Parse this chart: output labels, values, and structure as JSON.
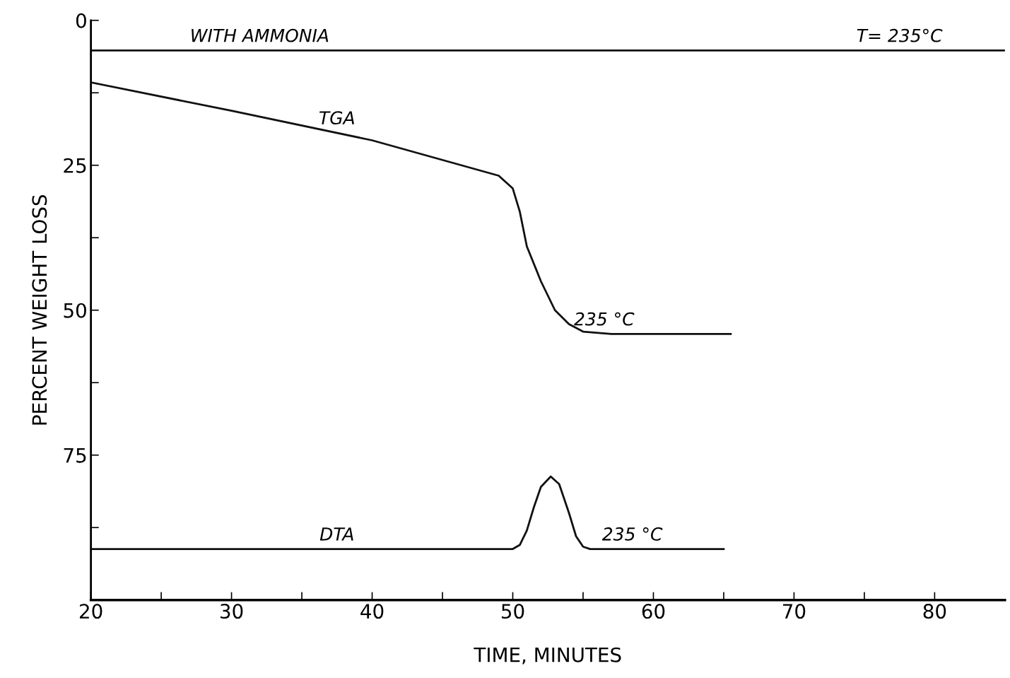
{
  "chart_data": {
    "type": "line",
    "xlabel": "TIME, MINUTES",
    "ylabel": "PERCENT WEIGHT LOSS",
    "xlim": [
      20,
      85
    ],
    "ylim": [
      100,
      0
    ],
    "xticks": [
      20,
      {
        "value": 25,
        "label": null
      },
      30,
      {
        "value": 35,
        "label": null
      },
      40,
      {
        "value": 45,
        "label": null
      },
      50,
      {
        "value": 55,
        "label": null
      },
      60,
      {
        "value": 65,
        "label": null
      },
      70,
      {
        "value": 75,
        "label": null
      },
      80
    ],
    "yticks": [
      0,
      {
        "value": 12.5,
        "label": null
      },
      25,
      {
        "value": 37.5,
        "label": null
      },
      50,
      {
        "value": 62.5,
        "label": null
      },
      75,
      {
        "value": 87.5,
        "label": null
      }
    ],
    "grid": false,
    "marker": "none",
    "line_style": "solid",
    "series": [
      {
        "color": "#111111",
        "x": [
          20,
          85
        ],
        "values": [
          5.2,
          5.2
        ]
      },
      {
        "color": "#111111",
        "x": [
          20,
          30,
          40,
          49,
          50,
          50.5,
          51,
          52,
          53,
          54,
          55,
          57,
          65.5
        ],
        "values": [
          10.7,
          15.6,
          20.7,
          26.8,
          29,
          33,
          39,
          45,
          50,
          52.4,
          53.7,
          54.1,
          54.1
        ]
      },
      {
        "color": "#111111",
        "x": [
          20,
          50,
          50.5,
          51,
          51.5,
          52,
          52.7,
          53.3,
          54,
          54.5,
          55,
          55.5,
          65
        ],
        "values": [
          91.2,
          91.2,
          90.5,
          88,
          84,
          80.5,
          78.7,
          80,
          85,
          89,
          90.8,
          91.2,
          91.2
        ]
      }
    ],
    "annotations": [
      {
        "text": "WITH AMMONIA",
        "x": 32,
        "y": 5.2
      },
      {
        "text": "T= 235°C",
        "x": 77.5,
        "y": 5.2
      },
      {
        "text": "TGA",
        "x": 37.5,
        "y": 19.4
      },
      {
        "text": "235 °C",
        "x": 56.5,
        "y": 54.1
      },
      {
        "text": "DTA",
        "x": 37.5,
        "y": 91.2
      },
      {
        "text": "235 °C",
        "x": 58.5,
        "y": 91.2
      }
    ]
  }
}
